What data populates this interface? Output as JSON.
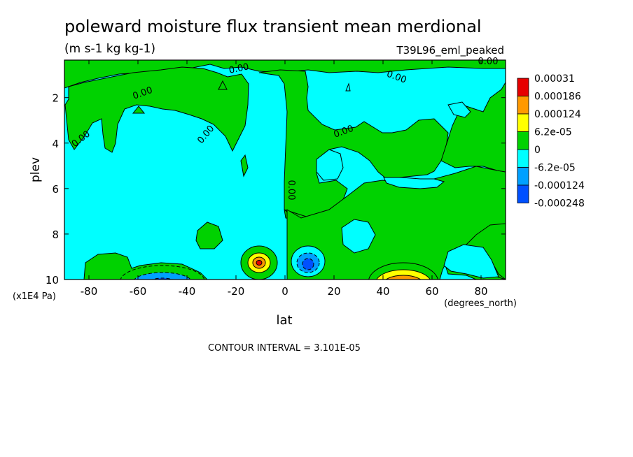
{
  "chart_data": {
    "type": "heatmap",
    "title": "poleward moisture flux transient mean merdional",
    "units": "(m s-1 kg kg-1)",
    "dataset_label": "T39L96_eml_peaked",
    "xlabel": "lat",
    "xunits": "(degrees_north)",
    "ylabel": "plev",
    "yunits": "(x1E4 Pa)",
    "xlim": [
      -90,
      90
    ],
    "ylim": [
      10,
      0.35
    ],
    "y_inverted": true,
    "x_ticks": [
      -80,
      -60,
      -40,
      -20,
      0,
      20,
      40,
      60,
      80
    ],
    "x_tick_labels": [
      "-80",
      "-60",
      "-40",
      "-20",
      "0",
      "20",
      "40",
      "60",
      "80"
    ],
    "y_ticks": [
      2,
      4,
      6,
      8,
      10
    ],
    "y_tick_labels": [
      "2",
      "4",
      "6",
      "8",
      "10"
    ],
    "contour_interval_text": "CONTOUR INTERVAL = 3.101E-05",
    "contour_labels": [
      "0.00",
      "0.00",
      "0.00",
      "0.00",
      "0.00",
      "0.00",
      "0.00",
      "0.00"
    ],
    "colorbar": {
      "colors": [
        "#e60000",
        "#ff9900",
        "#ffff00",
        "#00d200",
        "#00ffff",
        "#00a0ff",
        "#0050ff"
      ],
      "labels": [
        "0.00031",
        "0.000186",
        "0.000124",
        "6.2e-05",
        "0",
        "-6.2e-05",
        "-0.000124",
        "-0.000248"
      ]
    },
    "grid": false,
    "legend_position": "right"
  }
}
